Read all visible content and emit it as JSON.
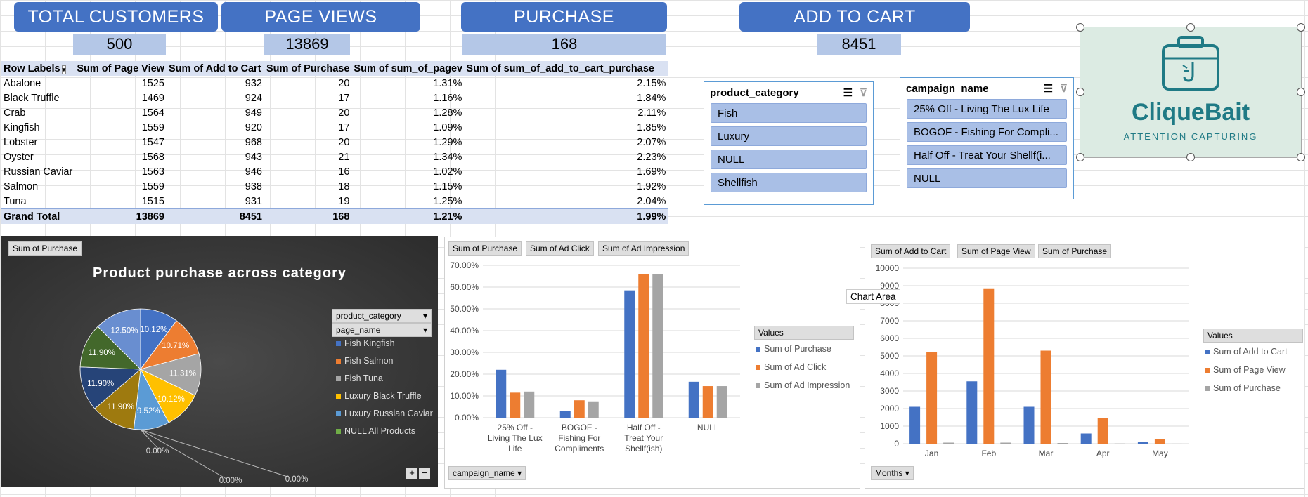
{
  "kpis": [
    {
      "label": "TOTAL CUSTOMERS",
      "value": "500"
    },
    {
      "label": "PAGE VIEWS",
      "value": "13869"
    },
    {
      "label": "PURCHASE",
      "value": "168"
    },
    {
      "label": "ADD TO CART",
      "value": "8451"
    }
  ],
  "pivot": {
    "headers": [
      "Row Labels",
      "Sum of Page View",
      "Sum of Add to Cart",
      "Sum of Purchase",
      "Sum of sum_of_pagev",
      "Sum of sum_of_add_to_cart_purchase"
    ],
    "rows": [
      [
        "Abalone",
        "1525",
        "932",
        "20",
        "1.31%",
        "2.15%"
      ],
      [
        "Black Truffle",
        "1469",
        "924",
        "17",
        "1.16%",
        "1.84%"
      ],
      [
        "Crab",
        "1564",
        "949",
        "20",
        "1.28%",
        "2.11%"
      ],
      [
        "Kingfish",
        "1559",
        "920",
        "17",
        "1.09%",
        "1.85%"
      ],
      [
        "Lobster",
        "1547",
        "968",
        "20",
        "1.29%",
        "2.07%"
      ],
      [
        "Oyster",
        "1568",
        "943",
        "21",
        "1.34%",
        "2.23%"
      ],
      [
        "Russian Caviar",
        "1563",
        "946",
        "16",
        "1.02%",
        "1.69%"
      ],
      [
        "Salmon",
        "1559",
        "938",
        "18",
        "1.15%",
        "1.92%"
      ],
      [
        "Tuna",
        "1515",
        "931",
        "19",
        "1.25%",
        "2.04%"
      ]
    ],
    "total": [
      "Grand Total",
      "13869",
      "8451",
      "168",
      "1.21%",
      "1.99%"
    ]
  },
  "slicers": {
    "product_category": {
      "title": "product_category",
      "items": [
        "Fish",
        "Luxury",
        "NULL",
        "Shellfish"
      ]
    },
    "campaign_name": {
      "title": "campaign_name",
      "items": [
        "25% Off - Living The Lux Life",
        "BOGOF - Fishing For Compli...",
        "Half Off - Treat Your Shellf(i...",
        "NULL"
      ]
    }
  },
  "logo": {
    "name": "CliqueBait",
    "tagline": "ATTENTION CAPTURING",
    "bg_color": "#dcebe3",
    "accent": "#1f7a85"
  },
  "colors": {
    "blue": "#4472c4",
    "orange": "#ed7d31",
    "gray": "#a5a5a5",
    "yellow": "#ffc000",
    "lightblue": "#5b9bd5",
    "green": "#70ad47",
    "darkyellow": "#9e7a0f",
    "darkgreen": "#43682b",
    "darkblue": "#264478"
  },
  "chart_data": [
    {
      "type": "pie",
      "title": "Product purchase across category",
      "field_button": "Sum of Purchase",
      "filter_buttons": [
        "product_category",
        "page_name"
      ],
      "legend": [
        "Fish Kingfish",
        "Fish Salmon",
        "Fish Tuna",
        "Luxury Black Truffle",
        "Luxury Russian Caviar",
        "NULL All Products"
      ],
      "slices": [
        {
          "value": 10.12,
          "label": "10.12%",
          "color": "#4472c4"
        },
        {
          "value": 10.71,
          "label": "10.71%",
          "color": "#ed7d31"
        },
        {
          "value": 11.31,
          "label": "11.31%",
          "color": "#a5a5a5"
        },
        {
          "value": 10.12,
          "label": "10.12%",
          "color": "#ffc000"
        },
        {
          "value": 9.52,
          "label": "9.52%",
          "color": "#5b9bd5"
        },
        {
          "value": 11.9,
          "label": "11.90%",
          "color": "#9e7a0f"
        },
        {
          "value": 11.9,
          "label": "11.90%",
          "color": "#264478"
        },
        {
          "value": 11.9,
          "label": "11.90%",
          "color": "#43682b"
        },
        {
          "value": 12.5,
          "label": "12.50%",
          "color": "#698ed0"
        }
      ],
      "zero_labels": [
        "0.00%",
        "0.00%",
        "0.00%"
      ]
    },
    {
      "type": "bar",
      "field_buttons": [
        "Sum of Purchase",
        "Sum of Ad Click",
        "Sum of Ad Impression"
      ],
      "axis_button": "campaign_name",
      "legend_title": "Values",
      "categories": [
        "25% Off - Living The Lux Life",
        "BOGOF - Fishing For Compliments",
        "Half Off - Treat Your Shellf(ish)",
        "NULL"
      ],
      "series": [
        {
          "name": "Sum of Purchase",
          "values": [
            22,
            3,
            58.5,
            16.5
          ],
          "color": "#4472c4"
        },
        {
          "name": "Sum of Ad Click",
          "values": [
            11.5,
            8,
            66,
            14.5
          ],
          "color": "#ed7d31"
        },
        {
          "name": "Sum of Ad Impression",
          "values": [
            12,
            7.5,
            66,
            14.5
          ],
          "color": "#a5a5a5"
        }
      ],
      "ylim": [
        0,
        70
      ],
      "yticks": [
        "0.00%",
        "10.00%",
        "20.00%",
        "30.00%",
        "40.00%",
        "50.00%",
        "60.00%",
        "70.00%"
      ]
    },
    {
      "type": "bar",
      "field_buttons": [
        "Sum of Add to Cart",
        "Sum of Page View",
        "Sum of Purchase"
      ],
      "axis_button": "Months",
      "tooltip": "Chart Area",
      "legend_title": "Values",
      "categories": [
        "Jan",
        "Feb",
        "Mar",
        "Apr",
        "May"
      ],
      "series": [
        {
          "name": "Sum of Add to Cart",
          "values": [
            2100,
            3550,
            2100,
            580,
            120
          ],
          "color": "#4472c4"
        },
        {
          "name": "Sum of Page View",
          "values": [
            5200,
            8850,
            5300,
            1480,
            260
          ],
          "color": "#ed7d31"
        },
        {
          "name": "Sum of Purchase",
          "values": [
            60,
            60,
            40,
            10,
            2
          ],
          "color": "#a5a5a5"
        }
      ],
      "ylim": [
        0,
        10000
      ],
      "yticks": [
        "0",
        "1000",
        "2000",
        "3000",
        "4000",
        "5000",
        "6000",
        "7000",
        "8000",
        "9000",
        "10000"
      ]
    }
  ]
}
